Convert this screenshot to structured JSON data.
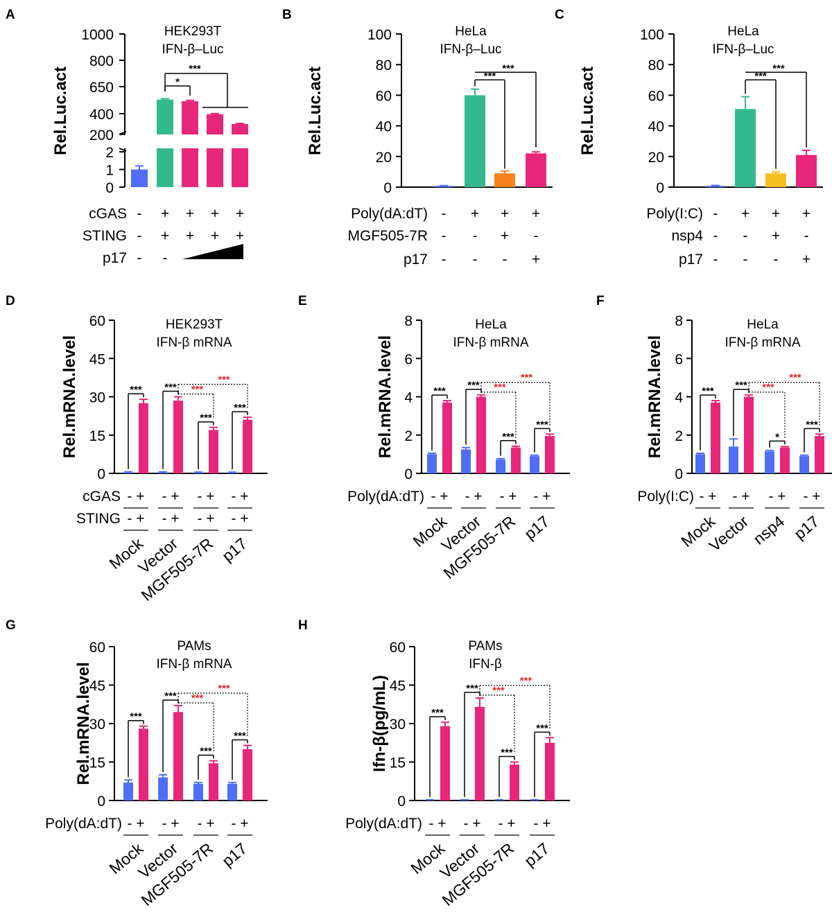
{
  "colors": {
    "blue": "#4f6ef5",
    "green": "#34b98f",
    "magenta": "#e8267a",
    "orange": "#f5821f",
    "yellow": "#f5bd1f",
    "red_sig": "#e4252c",
    "black": "#000000"
  },
  "chart_data": [
    {
      "id": "A",
      "type": "bar",
      "panel_label": "A",
      "title": [
        "HEK293T",
        "IFN-β–Luc"
      ],
      "ylabel": "Rel.Luc.act",
      "broken_axis": true,
      "lower_ticks": [
        "0",
        "1",
        "2"
      ],
      "upper_ticks": [
        "200",
        "400",
        "650",
        "800",
        "1000"
      ],
      "lower_range": [
        0,
        2.2
      ],
      "upper_range": [
        100,
        1000
      ],
      "bars": [
        {
          "value": 1.0,
          "error": 0.2,
          "color": "blue"
        },
        {
          "value": 530,
          "error": 8,
          "color": "green"
        },
        {
          "value": 515,
          "error": 8,
          "color": "magenta"
        },
        {
          "value": 395,
          "error": 6,
          "color": "magenta"
        },
        {
          "value": 300,
          "error": 6,
          "color": "magenta"
        }
      ],
      "rows": [
        {
          "label": "cGAS",
          "marks": [
            "-",
            "+",
            "+",
            "+",
            "+"
          ]
        },
        {
          "label": "STING",
          "marks": [
            "-",
            "+",
            "+",
            "+",
            "+"
          ]
        },
        {
          "label": "p17",
          "marks": [
            "-",
            "-",
            "",
            "",
            ""
          ]
        }
      ],
      "significance": [
        "*",
        "***"
      ]
    },
    {
      "id": "B",
      "type": "bar",
      "panel_label": "B",
      "title": [
        "HeLa",
        "IFN-β–Luc"
      ],
      "ylabel": "Rel.Luc.act",
      "ylim": [
        0,
        100
      ],
      "ticks": [
        "0",
        "20",
        "40",
        "60",
        "80",
        "100"
      ],
      "bars": [
        {
          "value": 0.8,
          "error": 0.2,
          "color": "blue"
        },
        {
          "value": 60,
          "error": 4,
          "color": "green"
        },
        {
          "value": 9,
          "error": 1.5,
          "color": "orange"
        },
        {
          "value": 22,
          "error": 1,
          "color": "magenta"
        }
      ],
      "rows": [
        {
          "label": "Poly(dA:dT)",
          "marks": [
            "-",
            "+",
            "+",
            "+"
          ]
        },
        {
          "label": "MGF505-7R",
          "marks": [
            "-",
            "-",
            "+",
            "-"
          ]
        },
        {
          "label": "p17",
          "marks": [
            "-",
            "-",
            "-",
            "+"
          ]
        }
      ],
      "significance": [
        "***",
        "***"
      ]
    },
    {
      "id": "C",
      "type": "bar",
      "panel_label": "C",
      "title": [
        "HeLa",
        "IFN-β–Luc"
      ],
      "ylabel": "Rel.Luc.act",
      "ylim": [
        0,
        100
      ],
      "ticks": [
        "0",
        "20",
        "40",
        "60",
        "80",
        "100"
      ],
      "bars": [
        {
          "value": 0.8,
          "error": 0.3,
          "color": "blue"
        },
        {
          "value": 51,
          "error": 8,
          "color": "green"
        },
        {
          "value": 9,
          "error": 1,
          "color": "yellow"
        },
        {
          "value": 21,
          "error": 3,
          "color": "magenta"
        }
      ],
      "rows": [
        {
          "label": "Poly(I:C)",
          "marks": [
            "-",
            "+",
            "+",
            "+"
          ]
        },
        {
          "label": "nsp4",
          "marks": [
            "-",
            "-",
            "+",
            "-"
          ]
        },
        {
          "label": "p17",
          "marks": [
            "-",
            "-",
            "-",
            "+"
          ]
        }
      ],
      "significance": [
        "***",
        "***"
      ]
    },
    {
      "id": "D",
      "type": "bar",
      "panel_label": "D",
      "title": [
        "HEK293T",
        "IFN-β mRNA"
      ],
      "ylabel": "Rel.mRNA.level",
      "ylim": [
        0,
        60
      ],
      "ticks": [
        "0",
        "15",
        "30",
        "45",
        "60"
      ],
      "groups": [
        "Mock",
        "Vector",
        "MGF505-7R",
        "p17"
      ],
      "pairs": [
        {
          "minus": 0.4,
          "minus_err": 0.2,
          "plus": 27.5,
          "plus_err": 1.5
        },
        {
          "minus": 0.4,
          "minus_err": 0.2,
          "plus": 28.5,
          "plus_err": 1.5
        },
        {
          "minus": 0.3,
          "minus_err": 0.2,
          "plus": 17,
          "plus_err": 1
        },
        {
          "minus": 0.3,
          "minus_err": 0.2,
          "plus": 21,
          "plus_err": 1
        }
      ],
      "rows": [
        {
          "label": "cGAS",
          "marks": [
            "- +",
            "- +",
            "- +",
            "- +"
          ]
        },
        {
          "label": "STING",
          "marks": [
            "- +",
            "- +",
            "- +",
            "- +"
          ]
        }
      ],
      "within_sig": [
        "***",
        "***",
        "***",
        "***"
      ],
      "between_sig": [
        "***",
        "***"
      ]
    },
    {
      "id": "E",
      "type": "bar",
      "panel_label": "E",
      "title": [
        "HeLa",
        "IFN-β mRNA"
      ],
      "ylabel": "Rel.mRNA.level",
      "ylim": [
        0,
        8
      ],
      "ticks": [
        "0",
        "2",
        "4",
        "6",
        "8"
      ],
      "groups": [
        "Mock",
        "Vector",
        "MGF505-7R",
        "p17"
      ],
      "pairs": [
        {
          "minus": 1.0,
          "minus_err": 0.05,
          "plus": 3.7,
          "plus_err": 0.1
        },
        {
          "minus": 1.25,
          "minus_err": 0.1,
          "plus": 4.0,
          "plus_err": 0.1
        },
        {
          "minus": 0.72,
          "minus_err": 0.05,
          "plus": 1.35,
          "plus_err": 0.07
        },
        {
          "minus": 0.9,
          "minus_err": 0.05,
          "plus": 1.95,
          "plus_err": 0.1
        }
      ],
      "rows": [
        {
          "label": "Poly(dA:dT)",
          "marks": [
            "- +",
            "- +",
            "- +",
            "- +"
          ]
        }
      ],
      "within_sig": [
        "***",
        "***",
        "***",
        "***"
      ],
      "between_sig": [
        "***",
        "***"
      ]
    },
    {
      "id": "F",
      "type": "bar",
      "panel_label": "F",
      "title": [
        "HeLa",
        "IFN-β mRNA"
      ],
      "ylabel": "Rel.mRNA.level",
      "ylim": [
        0,
        8
      ],
      "ticks": [
        "0",
        "2",
        "4",
        "6",
        "8"
      ],
      "groups": [
        "Mock",
        "Vector",
        "nsp4",
        "p17"
      ],
      "pairs": [
        {
          "minus": 1.0,
          "minus_err": 0.05,
          "plus": 3.7,
          "plus_err": 0.1
        },
        {
          "minus": 1.4,
          "minus_err": 0.4,
          "plus": 4.0,
          "plus_err": 0.1
        },
        {
          "minus": 1.15,
          "minus_err": 0.05,
          "plus": 1.35,
          "plus_err": 0.05
        },
        {
          "minus": 0.9,
          "minus_err": 0.05,
          "plus": 1.95,
          "plus_err": 0.1
        }
      ],
      "rows": [
        {
          "label": "Poly(I:C)",
          "marks": [
            "- +",
            "- +",
            "- +",
            "- +"
          ]
        }
      ],
      "within_sig": [
        "***",
        "***",
        "*",
        "***"
      ],
      "between_sig": [
        "***",
        "***"
      ]
    },
    {
      "id": "G",
      "type": "bar",
      "panel_label": "G",
      "title": [
        "PAMs",
        "IFN-β mRNA"
      ],
      "ylabel": "Rel.mRNA.level",
      "ylim": [
        0,
        60
      ],
      "ticks": [
        "0",
        "15",
        "30",
        "45",
        "60"
      ],
      "groups": [
        "Mock",
        "Vector",
        "MGF505-7R",
        "p17"
      ],
      "pairs": [
        {
          "minus": 7,
          "minus_err": 1,
          "plus": 28,
          "plus_err": 1
        },
        {
          "minus": 9,
          "minus_err": 1,
          "plus": 34.5,
          "plus_err": 2.5
        },
        {
          "minus": 6.5,
          "minus_err": 0.5,
          "plus": 14.5,
          "plus_err": 1
        },
        {
          "minus": 6.5,
          "minus_err": 0.5,
          "plus": 20,
          "plus_err": 1.5
        }
      ],
      "rows": [
        {
          "label": "Poly(dA:dT)",
          "marks": [
            "- +",
            "- +",
            "- +",
            "- +"
          ]
        }
      ],
      "within_sig": [
        "***",
        "***",
        "***",
        "***"
      ],
      "between_sig": [
        "***",
        "***"
      ]
    },
    {
      "id": "H",
      "type": "bar",
      "panel_label": "H",
      "title": [
        "PAMs",
        "IFN-β"
      ],
      "ylabel": "Ifn-β(pg/mL)",
      "ylim": [
        0,
        60
      ],
      "ticks": [
        "0",
        "15",
        "30",
        "45",
        "60"
      ],
      "groups": [
        "Mock",
        "Vector",
        "MGF505-7R",
        "p17"
      ],
      "pairs": [
        {
          "minus": 0.2,
          "minus_err": 0.1,
          "plus": 29,
          "plus_err": 1.5
        },
        {
          "minus": 0.2,
          "minus_err": 0.1,
          "plus": 36.5,
          "plus_err": 3.5
        },
        {
          "minus": 0.2,
          "minus_err": 0.1,
          "plus": 14,
          "plus_err": 1
        },
        {
          "minus": 0.2,
          "minus_err": 0.1,
          "plus": 22.5,
          "plus_err": 2
        }
      ],
      "rows": [
        {
          "label": "Poly(dA:dT)",
          "marks": [
            "- +",
            "- +",
            "- +",
            "- +"
          ]
        }
      ],
      "within_sig": [
        "***",
        "***",
        "***",
        "***"
      ],
      "between_sig": [
        "***",
        "***"
      ]
    }
  ]
}
